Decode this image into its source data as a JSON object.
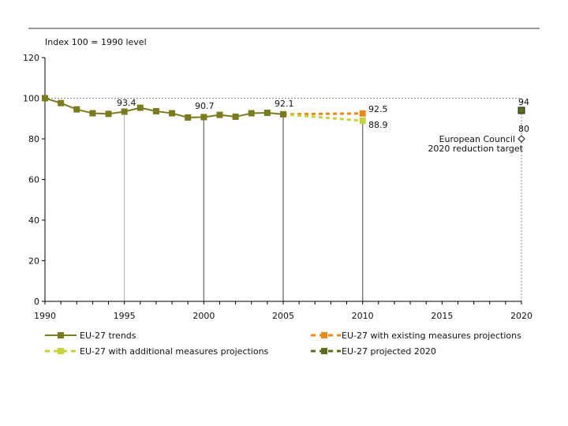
{
  "chart_data": {
    "type": "line",
    "ylabel": "Index 100 = 1990 level",
    "xlim": [
      1990,
      2020
    ],
    "ylim": [
      0,
      120
    ],
    "x_ticks": [
      1990,
      1995,
      2000,
      2005,
      2010,
      2015,
      2020
    ],
    "y_ticks": [
      0,
      20,
      40,
      60,
      80,
      100,
      120
    ],
    "reference_line": 100,
    "colors": {
      "trend": "#7a7a1e",
      "existing": "#e8891c",
      "additional": "#c6d23a",
      "projected2020": "#5c6b1c",
      "target": "#ffffff",
      "grid": "#888888"
    },
    "series": [
      {
        "name": "EU-27 trends",
        "style": "solid",
        "x": [
          1990,
          1991,
          1992,
          1993,
          1994,
          1995,
          1996,
          1997,
          1998,
          1999,
          2000,
          2001,
          2002,
          2003,
          2004,
          2005
        ],
        "values": [
          100,
          97.6,
          94.5,
          92.6,
          92.3,
          93.4,
          95.3,
          93.6,
          92.6,
          90.5,
          90.7,
          91.8,
          90.9,
          92.6,
          92.8,
          92.1
        ]
      },
      {
        "name": "EU-27 with existing measures projections",
        "style": "dashed",
        "x": [
          2005,
          2010
        ],
        "values": [
          92.1,
          92.5
        ]
      },
      {
        "name": "EU-27 with additional measures projections",
        "style": "dashed",
        "x": [
          2005,
          2010
        ],
        "values": [
          92.1,
          88.9
        ]
      },
      {
        "name": "EU-27 projected 2020",
        "style": "marker",
        "x": [
          2020
        ],
        "values": [
          94
        ]
      }
    ],
    "target": {
      "x": 2020,
      "value": 80
    },
    "annotations": {
      "a1995": "93.4",
      "a2000": "90.7",
      "a2005": "92.1",
      "a2010_existing": "92.5",
      "a2010_additional": "88.9",
      "a2020_projected": "94",
      "a2020_target": "80",
      "target_label_1": "European Council",
      "target_label_2": "2020 reduction target"
    },
    "legend": {
      "trends": "EU-27 trends",
      "existing": "EU-27 with existing measures projections",
      "additional": "EU-27 with additional measures projections",
      "projected": "EU-27 projected 2020"
    }
  }
}
